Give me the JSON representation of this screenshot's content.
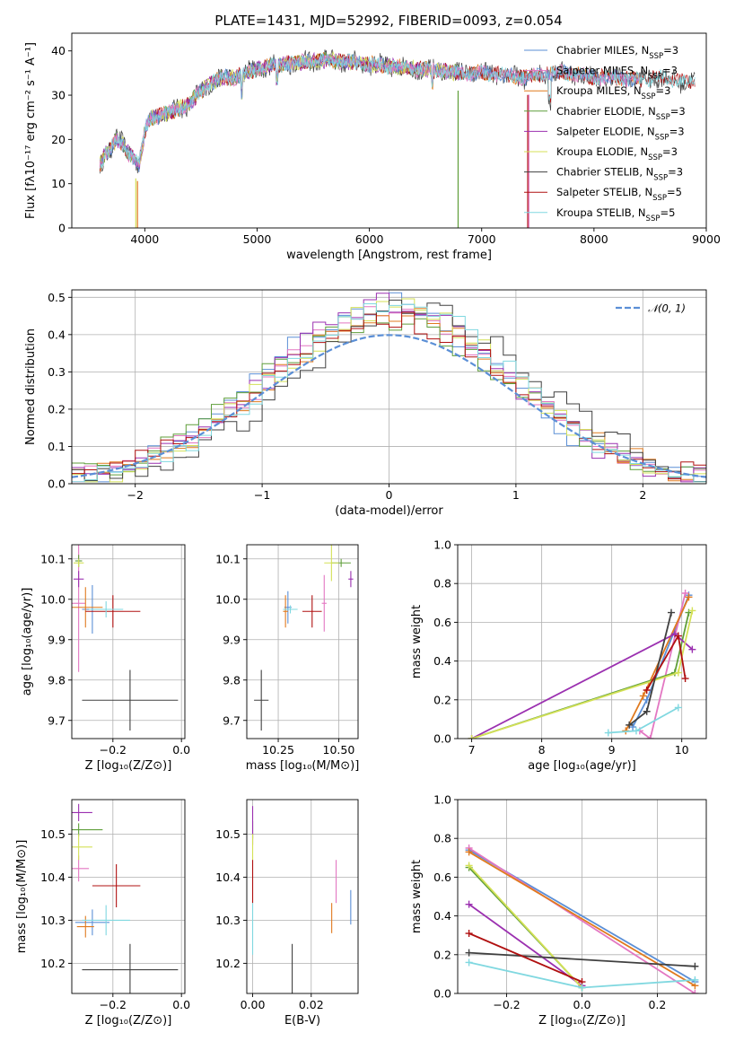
{
  "figure": {
    "title": "PLATE=1431, MJD=52992, FIBERID=0093, z=0.054"
  },
  "colors": {
    "Chabrier MILES": "#5b8fd6",
    "Salpeter MILES": "#e377c2",
    "Kroupa MILES": "#e07a1f",
    "Chabrier ELODIE": "#5f9e3a",
    "Salpeter ELODIE": "#9b30b0",
    "Kroupa ELODIE": "#d4e157",
    "Chabrier STELIB": "#404040",
    "Salpeter STELIB": "#b01010",
    "Kroupa STELIB": "#80d8e0",
    "gaussian": "#5b8fd6"
  },
  "chart_data": [
    {
      "id": "spectrum",
      "type": "line",
      "xlabel": "wavelength [Angstrom, rest frame]",
      "ylabel": "Flux [fλ10⁻¹⁷ erg cm⁻² s⁻¹ A⁻¹]",
      "xlim": [
        3350,
        9000
      ],
      "ylim": [
        0,
        44
      ],
      "xticks": [
        4000,
        5000,
        6000,
        7000,
        8000,
        9000
      ],
      "yticks": [
        0,
        10,
        20,
        30,
        40
      ],
      "legend_position": "top-right",
      "continuum": {
        "x": [
          3600,
          3650,
          3700,
          3750,
          3800,
          3850,
          3900,
          3950,
          4000,
          4050,
          4100,
          4200,
          4300,
          4400,
          4500,
          4600,
          4700,
          4800,
          4900,
          5000,
          5200,
          5400,
          5600,
          5800,
          6000,
          6200,
          6400,
          6600,
          6800,
          7000,
          7200,
          7400,
          7600,
          7800,
          8000,
          8200,
          8400,
          8600,
          8800,
          8900
        ],
        "y": [
          14,
          17,
          18,
          20,
          19,
          17,
          16,
          14,
          22,
          25,
          25,
          26,
          27,
          28,
          31,
          33,
          34,
          34,
          35,
          36,
          37,
          37.5,
          38,
          37.5,
          37,
          36.5,
          36,
          35.5,
          35,
          35,
          34.5,
          34,
          35,
          35,
          34,
          34,
          33.5,
          34,
          33,
          33
        ]
      },
      "series": [
        {
          "name": "Chabrier MILES, Nₛₛₚ=3",
          "nssp": "3"
        },
        {
          "name": "Salpeter MILES, Nₛₛₚ=3",
          "nssp": "3"
        },
        {
          "name": "Kroupa MILES, Nₛₛₚ=3",
          "nssp": "3"
        },
        {
          "name": "Chabrier ELODIE, Nₛₛₚ=3",
          "nssp": "3"
        },
        {
          "name": "Salpeter ELODIE, Nₛₛₚ=3",
          "nssp": "3"
        },
        {
          "name": "Kroupa ELODIE, Nₛₛₚ=3",
          "nssp": "3"
        },
        {
          "name": "Chabrier STELIB, Nₛₛₚ=3",
          "nssp": "3"
        },
        {
          "name": "Salpeter STELIB, Nₛₛₚ=5",
          "nssp": "5"
        },
        {
          "name": "Kroupa STELIB, Nₛₛₚ=5",
          "nssp": "5"
        }
      ]
    },
    {
      "id": "residuals",
      "type": "histogram",
      "xlabel": "(data-model)/error",
      "ylabel": "Normed distribution",
      "xlim": [
        -2.5,
        2.5
      ],
      "ylim": [
        0,
        0.52
      ],
      "xticks": [
        -2,
        -1,
        0,
        1,
        2
      ],
      "yticks": [
        0.0,
        0.1,
        0.2,
        0.3,
        0.4,
        0.5
      ],
      "grid": true,
      "legend_position": "top-right",
      "gaussian_label": "𝒩(0, 1)",
      "bin_width": 0.1
    },
    {
      "id": "age_vs_Z",
      "type": "scatter",
      "xlabel": "Z [log₁₀(Z/Z⊙)]",
      "ylabel": "age  [log₁₀(age/yr)]",
      "xlim": [
        -0.32,
        0.01
      ],
      "ylim": [
        9.655,
        10.135
      ],
      "xticks": [
        -0.2,
        0.0
      ],
      "yticks": [
        9.7,
        9.8,
        9.9,
        10.0,
        10.1
      ],
      "grid": true,
      "points": [
        {
          "s": "Chabrier MILES",
          "x": -0.26,
          "y": 9.975,
          "xerr": 0.03,
          "yerr": 0.06
        },
        {
          "s": "Salpeter MILES",
          "x": -0.3,
          "y": 9.99,
          "xerr": 0.02,
          "yerr": 0.17
        },
        {
          "s": "Kroupa MILES",
          "x": -0.28,
          "y": 9.98,
          "xerr": 0.05,
          "yerr": 0.05
        },
        {
          "s": "Chabrier ELODIE",
          "x": -0.3,
          "y": 10.095,
          "xerr": 0.01,
          "yerr": 0.015
        },
        {
          "s": "Salpeter ELODIE",
          "x": -0.3,
          "y": 10.05,
          "xerr": 0.015,
          "yerr": 0.02
        },
        {
          "s": "Kroupa ELODIE",
          "x": -0.3,
          "y": 10.09,
          "xerr": 0.015,
          "yerr": 0.01
        },
        {
          "s": "Chabrier STELIB",
          "x": -0.15,
          "y": 9.75,
          "xerr": 0.14,
          "yerr": 0.075
        },
        {
          "s": "Salpeter STELIB",
          "x": -0.2,
          "y": 9.97,
          "xerr": 0.08,
          "yerr": 0.04
        },
        {
          "s": "Kroupa STELIB",
          "x": -0.22,
          "y": 9.975,
          "xerr": 0.05,
          "yerr": 0.02
        }
      ]
    },
    {
      "id": "age_vs_mass",
      "type": "scatter",
      "xlabel": "mass [log₁₀(M/M⊙)]",
      "xlim": [
        10.12,
        10.58
      ],
      "ylim": [
        9.655,
        10.135
      ],
      "xticks": [
        10.25,
        10.5
      ],
      "yticks": [
        9.7,
        9.8,
        9.9,
        10.0,
        10.1
      ],
      "grid": true,
      "points": [
        {
          "s": "Chabrier MILES",
          "x": 10.29,
          "y": 9.98,
          "xerr": 0.015,
          "yerr": 0.04
        },
        {
          "s": "Salpeter MILES",
          "x": 10.44,
          "y": 9.99,
          "xerr": 0.01,
          "yerr": 0.07
        },
        {
          "s": "Kroupa MILES",
          "x": 10.28,
          "y": 9.97,
          "xerr": 0.01,
          "yerr": 0.04
        },
        {
          "s": "Chabrier ELODIE",
          "x": 10.51,
          "y": 10.09,
          "xerr": 0.04,
          "yerr": 0.01
        },
        {
          "s": "Salpeter ELODIE",
          "x": 10.55,
          "y": 10.05,
          "xerr": 0.01,
          "yerr": 0.02
        },
        {
          "s": "Kroupa ELODIE",
          "x": 10.47,
          "y": 10.09,
          "xerr": 0.03,
          "yerr": 0.045
        },
        {
          "s": "Chabrier STELIB",
          "x": 10.18,
          "y": 9.75,
          "xerr": 0.03,
          "yerr": 0.075
        },
        {
          "s": "Salpeter STELIB",
          "x": 10.39,
          "y": 9.97,
          "xerr": 0.04,
          "yerr": 0.04
        },
        {
          "s": "Kroupa STELIB",
          "x": 10.3,
          "y": 9.975,
          "xerr": 0.03,
          "yerr": 0.01
        }
      ]
    },
    {
      "id": "weight_vs_age",
      "type": "line",
      "xlabel": "age  [log₁₀(age/yr)]",
      "ylabel": "mass weight",
      "xlim": [
        6.8,
        10.35
      ],
      "ylim": [
        0,
        1.0
      ],
      "xticks": [
        7,
        8,
        9,
        10
      ],
      "yticks": [
        0.0,
        0.2,
        0.4,
        0.6,
        0.8,
        1.0
      ],
      "grid": true,
      "series": [
        {
          "s": "Chabrier MILES",
          "x": [
            9.3,
            9.5,
            10.1
          ],
          "y": [
            0.06,
            0.2,
            0.74
          ]
        },
        {
          "s": "Salpeter MILES",
          "x": [
            9.4,
            9.55,
            10.05
          ],
          "y": [
            0.04,
            0.0,
            0.75
          ]
        },
        {
          "s": "Kroupa MILES",
          "x": [
            9.2,
            9.45,
            10.1
          ],
          "y": [
            0.04,
            0.22,
            0.73
          ]
        },
        {
          "s": "Chabrier ELODIE",
          "x": [
            7.0,
            9.9,
            10.1
          ],
          "y": [
            0.0,
            0.34,
            0.65
          ]
        },
        {
          "s": "Salpeter ELODIE",
          "x": [
            7.0,
            9.9,
            10.15
          ],
          "y": [
            0.0,
            0.54,
            0.46
          ]
        },
        {
          "s": "Kroupa ELODIE",
          "x": [
            7.0,
            9.95,
            10.15
          ],
          "y": [
            0.0,
            0.34,
            0.66
          ]
        },
        {
          "s": "Chabrier STELIB",
          "x": [
            9.25,
            9.5,
            9.85
          ],
          "y": [
            0.07,
            0.14,
            0.65
          ]
        },
        {
          "s": "Salpeter STELIB",
          "x": [
            9.5,
            9.95,
            10.05
          ],
          "y": [
            0.25,
            0.53,
            0.31
          ]
        },
        {
          "s": "Kroupa STELIB",
          "x": [
            8.95,
            9.35,
            9.95
          ],
          "y": [
            0.03,
            0.04,
            0.16
          ]
        }
      ]
    },
    {
      "id": "mass_vs_Z",
      "type": "scatter",
      "xlabel": "Z [log₁₀(Z/Z⊙)]",
      "ylabel": "mass [log₁₀(M/M⊙)]",
      "xlim": [
        -0.32,
        0.01
      ],
      "ylim": [
        10.13,
        10.58
      ],
      "xticks": [
        -0.2,
        0.0
      ],
      "yticks": [
        10.2,
        10.3,
        10.4,
        10.5
      ],
      "grid": true,
      "points": [
        {
          "s": "Chabrier MILES",
          "x": -0.26,
          "y": 10.295,
          "xerr": 0.05,
          "yerr": 0.03
        },
        {
          "s": "Salpeter MILES",
          "x": -0.3,
          "y": 10.42,
          "xerr": 0.03,
          "yerr": 0.03
        },
        {
          "s": "Kroupa MILES",
          "x": -0.28,
          "y": 10.285,
          "xerr": 0.025,
          "yerr": 0.025
        },
        {
          "s": "Chabrier ELODIE",
          "x": -0.3,
          "y": 10.51,
          "xerr": 0.07,
          "yerr": 0.015
        },
        {
          "s": "Salpeter ELODIE",
          "x": -0.3,
          "y": 10.55,
          "xerr": 0.04,
          "yerr": 0.02
        },
        {
          "s": "Kroupa ELODIE",
          "x": -0.3,
          "y": 10.47,
          "xerr": 0.04,
          "yerr": 0.03
        },
        {
          "s": "Chabrier STELIB",
          "x": -0.15,
          "y": 10.185,
          "xerr": 0.14,
          "yerr": 0.06
        },
        {
          "s": "Salpeter STELIB",
          "x": -0.19,
          "y": 10.38,
          "xerr": 0.07,
          "yerr": 0.05
        },
        {
          "s": "Kroupa STELIB",
          "x": -0.22,
          "y": 10.3,
          "xerr": 0.07,
          "yerr": 0.035
        }
      ]
    },
    {
      "id": "mass_vs_ebv",
      "type": "scatter",
      "xlabel": "E(B-V)",
      "xlim": [
        -0.002,
        0.036
      ],
      "ylim": [
        10.13,
        10.58
      ],
      "xticks": [
        0.0,
        0.02
      ],
      "yticks": [
        10.2,
        10.3,
        10.4,
        10.5
      ],
      "grid": true,
      "points": [
        {
          "s": "Chabrier MILES",
          "x": 0.0335,
          "y": 10.33,
          "xerr": 0,
          "yerr": 0.04
        },
        {
          "s": "Salpeter MILES",
          "x": 0.0285,
          "y": 10.39,
          "xerr": 0,
          "yerr": 0.05
        },
        {
          "s": "Kroupa MILES",
          "x": 0.027,
          "y": 10.305,
          "xerr": 0,
          "yerr": 0.035
        },
        {
          "s": "Chabrier ELODIE",
          "x": 0.0,
          "y": 10.51,
          "xerr": 0,
          "yerr": 0.02
        },
        {
          "s": "Salpeter ELODIE",
          "x": 0.0,
          "y": 10.52,
          "xerr": 0,
          "yerr": 0.045
        },
        {
          "s": "Kroupa ELODIE",
          "x": 0.0,
          "y": 10.47,
          "xerr": 0,
          "yerr": 0.03
        },
        {
          "s": "Chabrier STELIB",
          "x": 0.0135,
          "y": 10.185,
          "xerr": 0,
          "yerr": 0.06
        },
        {
          "s": "Salpeter STELIB",
          "x": 0.0,
          "y": 10.39,
          "xerr": 0,
          "yerr": 0.05
        },
        {
          "s": "Kroupa STELIB",
          "x": 0.0,
          "y": 10.28,
          "xerr": 0,
          "yerr": 0.06
        }
      ]
    },
    {
      "id": "weight_vs_Z",
      "type": "line",
      "xlabel": "Z [log₁₀(Z/Z⊙)]",
      "ylabel": "mass weight",
      "xlim": [
        -0.33,
        0.33
      ],
      "ylim": [
        0,
        1.0
      ],
      "xticks": [
        -0.2,
        0.0,
        0.2
      ],
      "yticks": [
        0.0,
        0.2,
        0.4,
        0.6,
        0.8,
        1.0
      ],
      "grid": true,
      "series": [
        {
          "s": "Chabrier MILES",
          "x": [
            -0.3,
            0.3
          ],
          "y": [
            0.74,
            0.06
          ]
        },
        {
          "s": "Salpeter MILES",
          "x": [
            -0.3,
            0.3
          ],
          "y": [
            0.75,
            0.0
          ]
        },
        {
          "s": "Kroupa MILES",
          "x": [
            -0.3,
            0.3
          ],
          "y": [
            0.73,
            0.04
          ]
        },
        {
          "s": "Chabrier ELODIE",
          "x": [
            -0.3,
            0.0
          ],
          "y": [
            0.65,
            0.03
          ]
        },
        {
          "s": "Salpeter ELODIE",
          "x": [
            -0.3,
            0.0
          ],
          "y": [
            0.46,
            0.04
          ]
        },
        {
          "s": "Kroupa ELODIE",
          "x": [
            -0.3,
            0.0
          ],
          "y": [
            0.66,
            0.03
          ]
        },
        {
          "s": "Chabrier STELIB",
          "x": [
            -0.3,
            0.3
          ],
          "y": [
            0.21,
            0.14
          ]
        },
        {
          "s": "Salpeter STELIB",
          "x": [
            -0.3,
            0.0
          ],
          "y": [
            0.31,
            0.06
          ]
        },
        {
          "s": "Kroupa STELIB",
          "x": [
            -0.3,
            0.0,
            0.3
          ],
          "y": [
            0.16,
            0.03,
            0.07
          ]
        }
      ]
    }
  ]
}
